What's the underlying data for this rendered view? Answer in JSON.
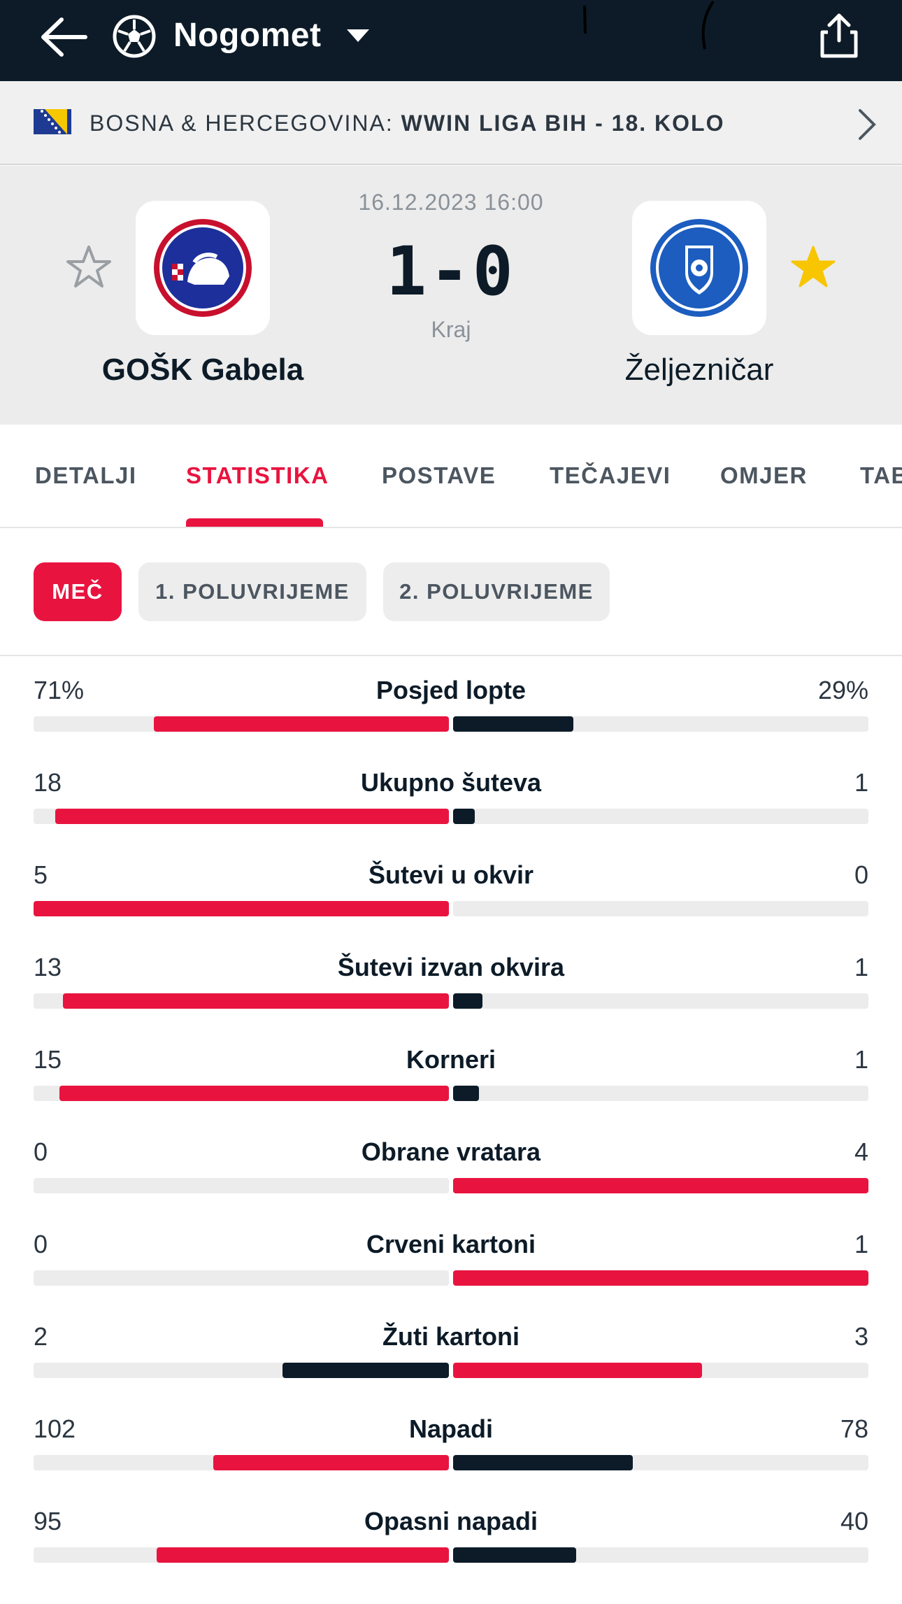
{
  "header": {
    "title": "Nogomet",
    "icons": [
      "back-arrow-icon",
      "football-icon",
      "caret-down-icon",
      "share-icon"
    ]
  },
  "league": {
    "country": "BOSNA & HERCEGOVINA:",
    "competition": "WWIN LIGA BIH - 18. KOLO",
    "flag": "bosnia-flag-icon"
  },
  "match": {
    "datetime": "16.12.2023 16:00",
    "score": "1-0",
    "status": "Kraj",
    "home": {
      "name": "GOŠK Gabela",
      "favorite": false
    },
    "away": {
      "name": "Željezničar",
      "favorite": true
    }
  },
  "tabs": [
    "DETALJI",
    "STATISTIKA",
    "POSTAVE",
    "TEČAJEVI",
    "OMJER",
    "TAB"
  ],
  "active_tab": "STATISTIKA",
  "periods": [
    "MEČ",
    "1. POLUVRIJEME",
    "2. POLUVRIJEME"
  ],
  "active_period": "MEČ",
  "colors": {
    "accent": "#e8143f",
    "dark": "#0c1b27",
    "track": "#ececec"
  },
  "stats": [
    {
      "label": "Posjed lopte",
      "home": "71%",
      "away": "29%",
      "home_fraction": 0.71,
      "away_fraction": 0.29,
      "home_color": "red",
      "away_color": "dark"
    },
    {
      "label": "Ukupno šuteva",
      "home": "18",
      "away": "1",
      "home_fraction": 0.947,
      "away_fraction": 0.053,
      "home_color": "red",
      "away_color": "dark"
    },
    {
      "label": "Šutevi u okvir",
      "home": "5",
      "away": "0",
      "home_fraction": 1.0,
      "away_fraction": 0.0,
      "home_color": "red",
      "away_color": "dark"
    },
    {
      "label": "Šutevi izvan okvira",
      "home": "13",
      "away": "1",
      "home_fraction": 0.929,
      "away_fraction": 0.071,
      "home_color": "red",
      "away_color": "dark"
    },
    {
      "label": "Korneri",
      "home": "15",
      "away": "1",
      "home_fraction": 0.9375,
      "away_fraction": 0.0625,
      "home_color": "red",
      "away_color": "dark"
    },
    {
      "label": "Obrane vratara",
      "home": "0",
      "away": "4",
      "home_fraction": 0.0,
      "away_fraction": 1.0,
      "home_color": "dark",
      "away_color": "red"
    },
    {
      "label": "Crveni kartoni",
      "home": "0",
      "away": "1",
      "home_fraction": 0.0,
      "away_fraction": 1.0,
      "home_color": "dark",
      "away_color": "red"
    },
    {
      "label": "Žuti kartoni",
      "home": "2",
      "away": "3",
      "home_fraction": 0.4,
      "away_fraction": 0.6,
      "home_color": "dark",
      "away_color": "red"
    },
    {
      "label": "Napadi",
      "home": "102",
      "away": "78",
      "home_fraction": 0.567,
      "away_fraction": 0.433,
      "home_color": "red",
      "away_color": "dark"
    },
    {
      "label": "Opasni napadi",
      "home": "95",
      "away": "40",
      "home_fraction": 0.704,
      "away_fraction": 0.296,
      "home_color": "red",
      "away_color": "dark"
    }
  ]
}
